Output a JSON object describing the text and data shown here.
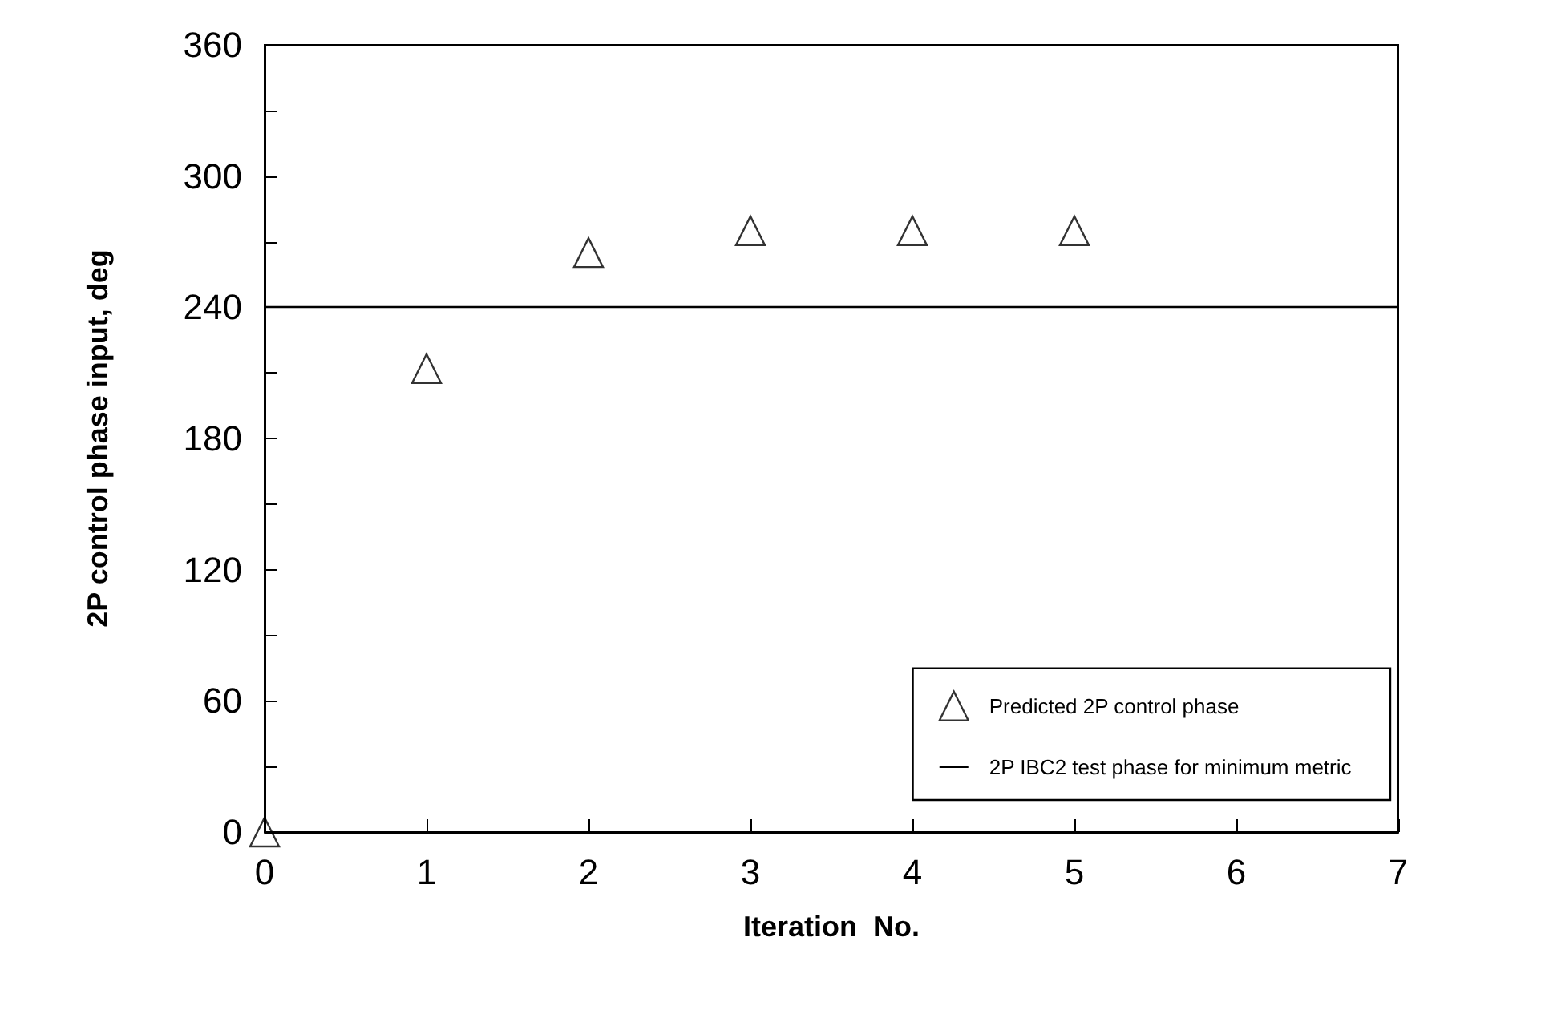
{
  "chart_data": {
    "type": "scatter",
    "xlabel": "Iteration  No.",
    "ylabel": "2P control phase input, deg",
    "x": [
      0,
      1,
      2,
      3,
      4,
      5
    ],
    "series": [
      {
        "name": "Predicted 2P control phase",
        "color": "#000000",
        "values": [
          0,
          212,
          265,
          275,
          275,
          275
        ]
      }
    ],
    "xlim": [
      0,
      7
    ],
    "xticks": [
      0,
      1,
      2,
      3,
      4,
      5,
      6,
      7
    ],
    "ylim": [
      0,
      360
    ],
    "yticks": [
      0,
      {
        "value": 30,
        "label": null
      },
      60,
      {
        "value": 90,
        "label": null
      },
      120,
      {
        "value": 150,
        "label": null
      },
      180,
      {
        "value": 210,
        "label": null
      },
      240,
      {
        "value": 270,
        "label": null
      },
      300,
      {
        "value": 330,
        "label": null
      },
      360
    ],
    "ref_lines": [
      {
        "axis": "y",
        "value": 240,
        "label": "2P IBC2 test phase for minimum metric",
        "color": "#000000",
        "line_style": "solid"
      }
    ],
    "marker": "triangle",
    "legend": "bottom right",
    "grid": false
  }
}
